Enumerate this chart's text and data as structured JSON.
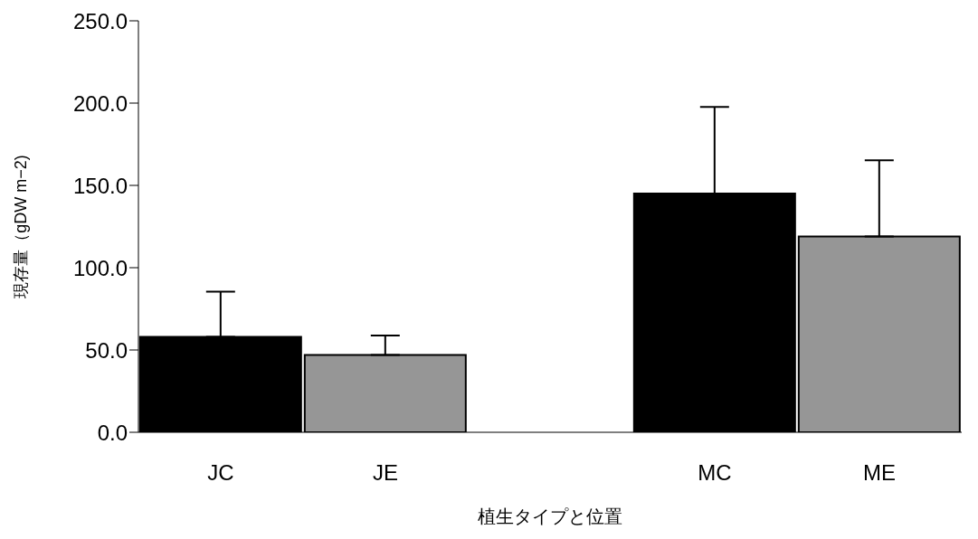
{
  "chart_data": {
    "type": "bar",
    "xlabel": "植生タイプと位置",
    "ylabel": "現存量（gDW m−2)",
    "categories": [
      "JC",
      "JE",
      null,
      "MC",
      "ME"
    ],
    "values": [
      58,
      47,
      null,
      145,
      119
    ],
    "colors": [
      "#000000",
      "#969696",
      null,
      "#000000",
      "#969696"
    ],
    "errors": [
      [
        58,
        85.5
      ],
      [
        47,
        58.8
      ],
      null,
      [
        145,
        197.7
      ],
      [
        119,
        165.2
      ]
    ],
    "ylim": [
      0,
      250
    ],
    "yticks": [
      {
        "value": 0,
        "label": "0.0"
      },
      {
        "value": 50,
        "label": "50.0"
      },
      {
        "value": 100,
        "label": "100.0"
      },
      {
        "value": 150,
        "label": "150.0"
      },
      {
        "value": 200,
        "label": "200.0"
      },
      {
        "value": 250,
        "label": "250.0"
      }
    ],
    "grid": false,
    "legend": false
  }
}
